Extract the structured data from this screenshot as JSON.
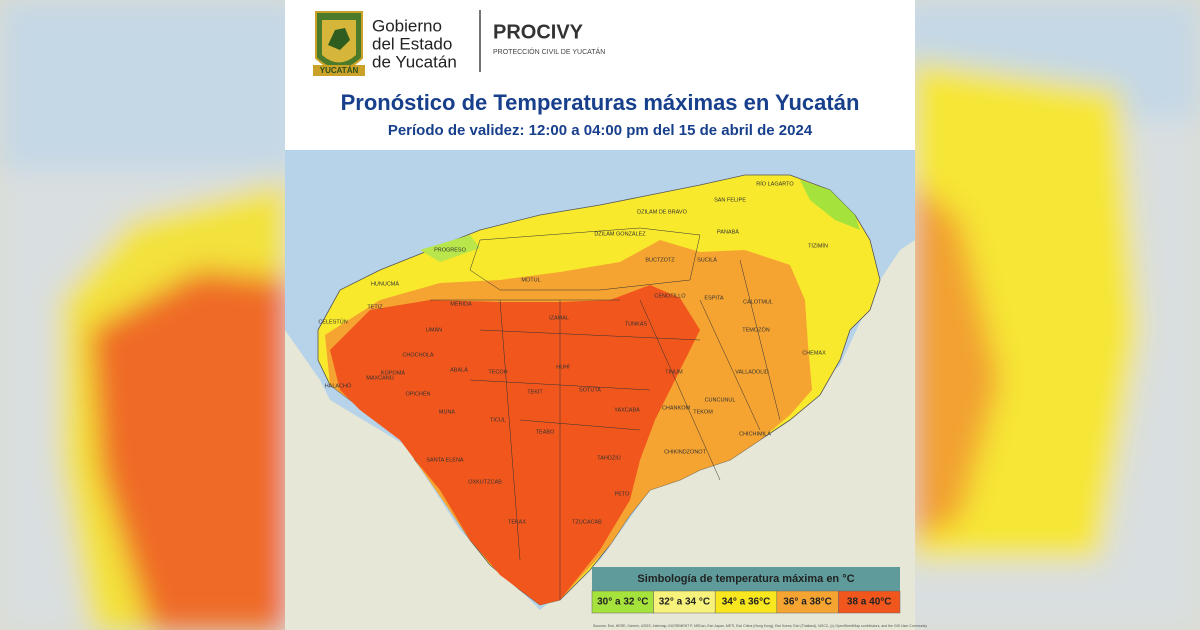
{
  "header": {
    "gov_lines": [
      "Gobierno",
      "del Estado",
      "de Yucatán"
    ],
    "crest_banner": "YUCATÁN",
    "agency": "PROCIVY",
    "agency_sub": "PROTECCIÓN CIVIL DE YUCATÁN"
  },
  "title": "Pronóstico de Temperaturas máximas en Yucatán",
  "subtitle": "Período de validez: 12:00 a 04:00 pm del 15 de abril de 2024",
  "map_labels": [
    "RÍO LAGARTO",
    "SAN FELIPE",
    "DZILAM DE BRAVO",
    "DZILAM GONZÁLEZ",
    "PANABÁ",
    "TIZIMÍN",
    "BUCTZOTZ",
    "SUCILÁ",
    "PROGRESO",
    "HUNUCMÁ",
    "CELESTÚN",
    "TETIZ",
    "MÉRIDA",
    "MOTUL",
    "IZAMAL",
    "CENOTILLO",
    "ESPITA",
    "CALOTMUL",
    "TEMOZÓN",
    "CHEMAX",
    "UMÁN",
    "TUNKÁS",
    "VALLADOLID",
    "CHOCHOLÁ",
    "KOPOMÁ",
    "ABALÁ",
    "TECOH",
    "HUHÍ",
    "TEKIT",
    "SOTUTA",
    "TINUM",
    "MAXCANÚ",
    "HALACHÓ",
    "OPICHÉN",
    "MUNA",
    "TICUL",
    "TEABO",
    "SANTA ELENA",
    "TEKOM",
    "CHICHIMILÁ",
    "YAXCABÁ",
    "CHANKOM",
    "CHIKINDZONOT",
    "OXKUTZCAB",
    "TAHDZIÚ",
    "PETO",
    "TEKAX",
    "TZUCACAB",
    "CUNCUNUL"
  ],
  "legend": {
    "title": "Simbología de temperatura máxima en °C",
    "items": [
      {
        "label": "30° a 32 °C",
        "color": "#a6e23c"
      },
      {
        "label": "32° a 34 °C",
        "color": "#f6f27c"
      },
      {
        "label": "34° a 36°C",
        "color": "#f8e61e"
      },
      {
        "label": "36° a 38°C",
        "color": "#f6a431"
      },
      {
        "label": "38 a 40°C",
        "color": "#f1561d"
      }
    ]
  },
  "attribution": "Sources: Esri, HERE, Garmin, USGS, Intermap, INCREMENT P, NRCan, Esri Japan, METI, Esri China (Hong Kong), Esri Korea, Esri (Thailand), NGCC, (c) OpenStreetMap contributors, and the GIS User Community"
}
